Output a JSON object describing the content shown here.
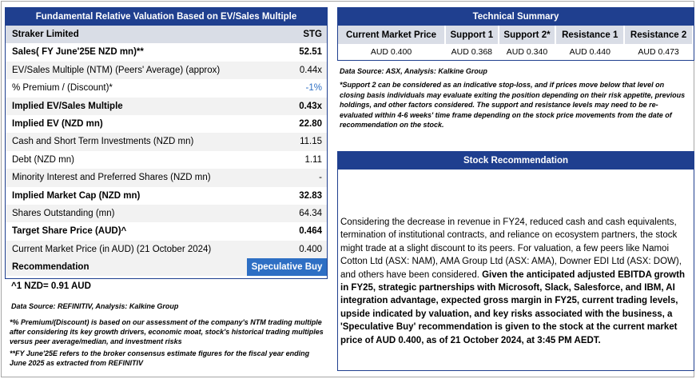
{
  "valuation": {
    "title": "Fundamental Relative Valuation Based on EV/Sales Multiple",
    "rows": [
      [
        "Straker Limited",
        "STG"
      ],
      [
        "Sales( FY June'25E NZD mn)**",
        "52.51"
      ],
      [
        "EV/Sales Multiple (NTM)  (Peers' Average) (approx)",
        "0.44x"
      ],
      [
        "% Premium / (Discount)*",
        "-1%"
      ],
      [
        "Implied EV/Sales Multiple",
        "0.43x"
      ],
      [
        "Implied EV (NZD mn)",
        "22.80"
      ],
      [
        "Cash and Short Term Investments (NZD mn)",
        "11.15"
      ],
      [
        "Debt (NZD mn)",
        "1.11"
      ],
      [
        "Minority Interest and Preferred Shares (NZD mn)",
        "-"
      ],
      [
        "Implied Market Cap (NZD mn)",
        "32.83"
      ],
      [
        "Shares Outstanding (mn)",
        "64.34"
      ],
      [
        "Target Share Price (AUD)^",
        "0.464"
      ],
      [
        "Current Market Price (in AUD) (21 October 2024)",
        "0.400"
      ],
      [
        "Recommendation",
        "Speculative Buy"
      ]
    ],
    "fx_note": "^1 NZD= 0.91 AUD",
    "source": "Data Source: REFINITIV, Analysis: Kalkine Group",
    "notes": [
      "*% Premium/(Discount) is based on our assessment of the company's NTM trading multiple after considering its key growth drivers, economic moat, stock's historical trading multiples versus peer average/median, and investment risks",
      "**FY June'25E refers to the broker consensus estimate figures for the fiscal year ending June 2025 as extracted from REFINITIV"
    ]
  },
  "technical": {
    "title": "Technical Summary",
    "headers": [
      "Current Market Price",
      "Support 1",
      "Support 2*",
      "Resistance 1",
      "Resistance 2"
    ],
    "values": [
      "AUD 0.400",
      "AUD 0.368",
      "AUD 0.340",
      "AUD 0.440",
      "AUD 0.473"
    ],
    "source": "Data Source: ASX, Analysis: Kalkine Group",
    "note": "*Support 2 can be considered as an indicative stop-loss, and if prices move below that level on closing basis individuals may evaluate exiting the position depending on their risk appetite, previous holdings, and other factors considered. The support and resistance levels may need to be re-evaluated within 4-6 weeks' time frame depending on the stock price movements from the date of recommendation on the stock."
  },
  "recommendation": {
    "title": "Stock Recommendation",
    "text": "Considering the decrease in revenue in FY24, reduced cash and cash equivalents, termination of institutional contracts, and reliance on ecosystem partners, the stock might trade at a slight discount to its peers. For valuation, a few peers like Namoi Cotton Ltd (ASX: NAM), AMA Group Ltd (ASX: AMA), Downer EDI Ltd (ASX: DOW), and others have been considered.",
    "bold_text": "Given the anticipated adjusted EBITDA growth in FY25, strategic partnerships with Microsoft, Slack, Salesforce, and IBM, AI integration advantage, expected gross margin in FY25, current trading levels, upside indicated by valuation, and key risks associated with the business, a 'Speculative Buy' recommendation is given to the stock at the current market price of AUD 0.400, as of 21 October 2024, at 3:45 PM AEDT."
  }
}
